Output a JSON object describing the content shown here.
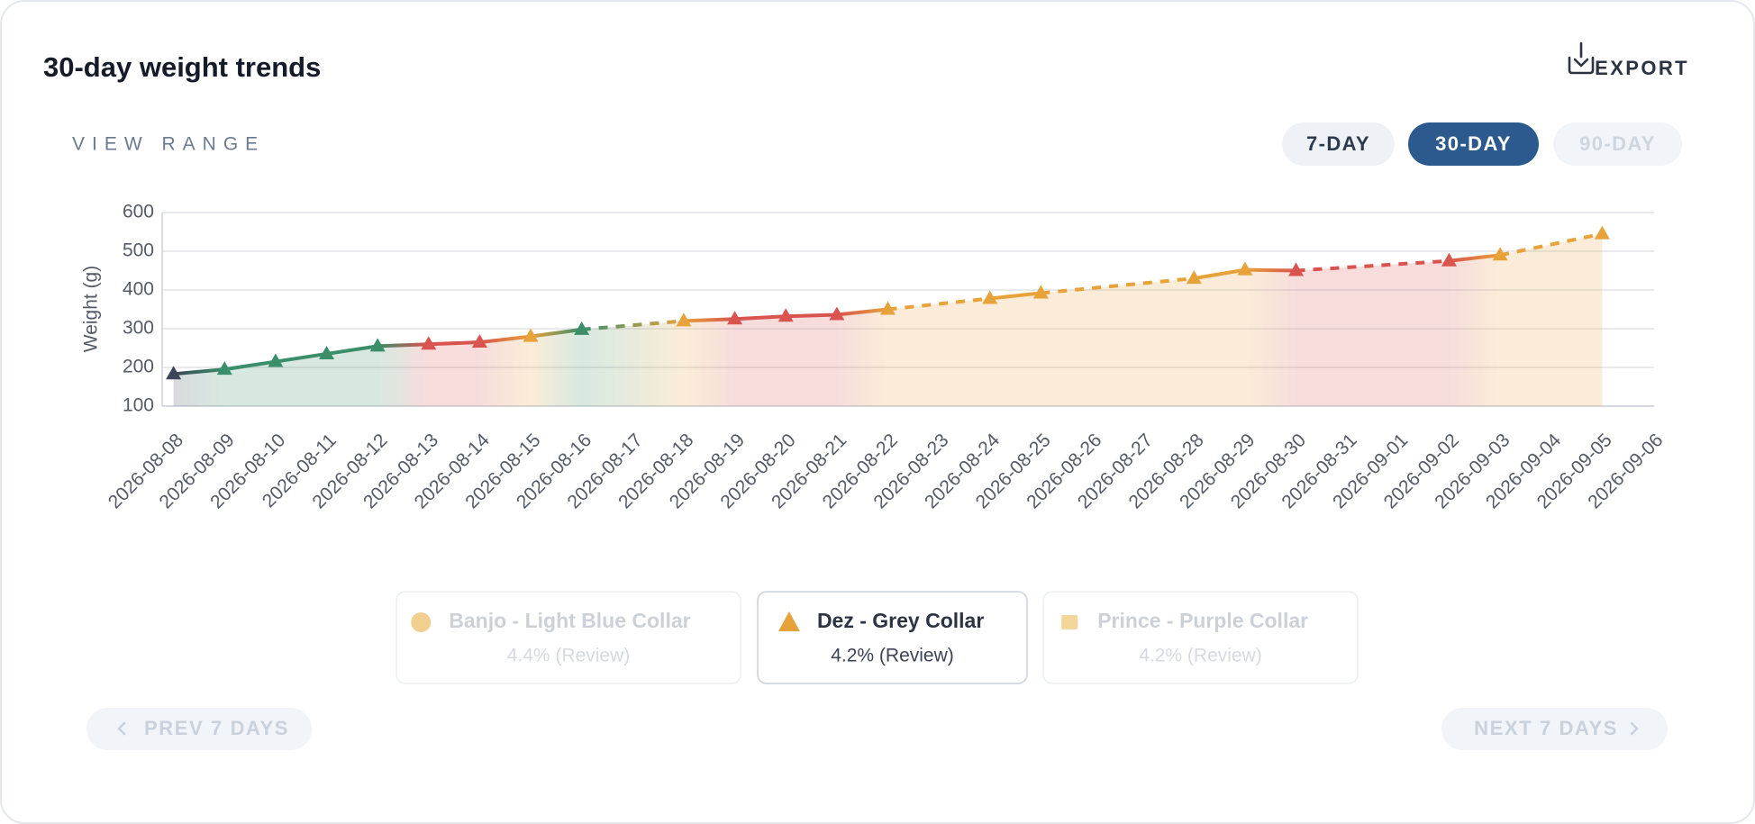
{
  "header": {
    "title": "30-day weight trends",
    "export": "EXPORT"
  },
  "range": {
    "label": "VIEW RANGE",
    "options": [
      "7-DAY",
      "30-DAY",
      "90-DAY"
    ],
    "selected_index": 1,
    "disabled_index": 2
  },
  "chart_data": {
    "type": "line",
    "y_label": "Weight (g)",
    "x": [
      "2026-08-08",
      "2026-08-09",
      "2026-08-10",
      "2026-08-11",
      "2026-08-12",
      "2026-08-13",
      "2026-08-14",
      "2026-08-15",
      "2026-08-16",
      "2026-08-17",
      "2026-08-18",
      "2026-08-19",
      "2026-08-20",
      "2026-08-21",
      "2026-08-22",
      "2026-08-23",
      "2026-08-24",
      "2026-08-25",
      "2026-08-26",
      "2026-08-27",
      "2026-08-28",
      "2026-08-29",
      "2026-08-30",
      "2026-08-31",
      "2026-09-01",
      "2026-09-02",
      "2026-09-03",
      "2026-09-04",
      "2026-09-05",
      "2026-09-06"
    ],
    "series": [
      {
        "color": "#e8a23a",
        "marker": "triangle",
        "values": [
          183,
          195,
          215,
          235,
          255,
          260,
          265,
          280,
          298,
          null,
          320,
          325,
          332,
          336,
          350,
          null,
          378,
          392,
          null,
          null,
          430,
          452,
          450,
          null,
          null,
          475,
          490,
          null,
          545,
          null
        ],
        "point_colors": [
          "#3d4556",
          "#3a8f6a",
          "#3a8f6a",
          "#3a8f6a",
          "#3a8f6a",
          "#d9534f",
          "#d9534f",
          "#e8a23a",
          "#3a8f6a",
          null,
          "#e8a23a",
          "#d9534f",
          "#d9534f",
          "#d9534f",
          "#e8a23a",
          null,
          "#e8a23a",
          "#e8a23a",
          null,
          null,
          "#e8a23a",
          "#e8a23a",
          "#d9534f",
          null,
          null,
          "#d9534f",
          "#e8a23a",
          null,
          "#e8a23a",
          null
        ]
      }
    ],
    "ylim": [
      100,
      600
    ],
    "yticks": [
      100,
      200,
      300,
      400,
      500,
      600
    ],
    "grid": true
  },
  "legend": {
    "items": [
      {
        "name": "Banjo - Light Blue Collar",
        "note": "4.4% (Review)",
        "marker": "circle",
        "color": "#f2cf8f",
        "active": false
      },
      {
        "name": "Dez - Grey Collar",
        "note": "4.2% (Review)",
        "marker": "triangle",
        "color": "#e8a23a",
        "active": true
      },
      {
        "name": "Prince - Purple Collar",
        "note": "4.2% (Review)",
        "marker": "square",
        "color": "#f3d79a",
        "active": false
      }
    ]
  },
  "nav": {
    "prev": "PREV 7 DAYS",
    "next": "NEXT 7 DAYS"
  }
}
